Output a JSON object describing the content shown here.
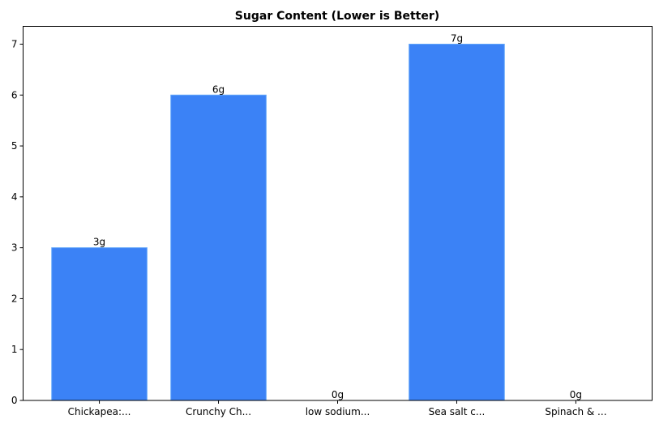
{
  "chart_data": {
    "type": "bar",
    "title": "Sugar Content (Lower is Better)",
    "xlabel": "",
    "ylabel": "",
    "categories": [
      "Chickapea:...",
      "Crunchy Ch...",
      "low sodium...",
      "Sea salt c...",
      "Spinach & ..."
    ],
    "values": [
      3,
      6,
      0,
      7,
      0
    ],
    "data_labels": [
      "3g",
      "6g",
      "0g",
      "7g",
      "0g"
    ],
    "ylim": [
      0,
      7.35
    ],
    "yticks": [
      0,
      1,
      2,
      3,
      4,
      5,
      6,
      7
    ],
    "grid": false,
    "bar_color": "#3b82f6",
    "bar_edge_color": "#60a5fa"
  }
}
